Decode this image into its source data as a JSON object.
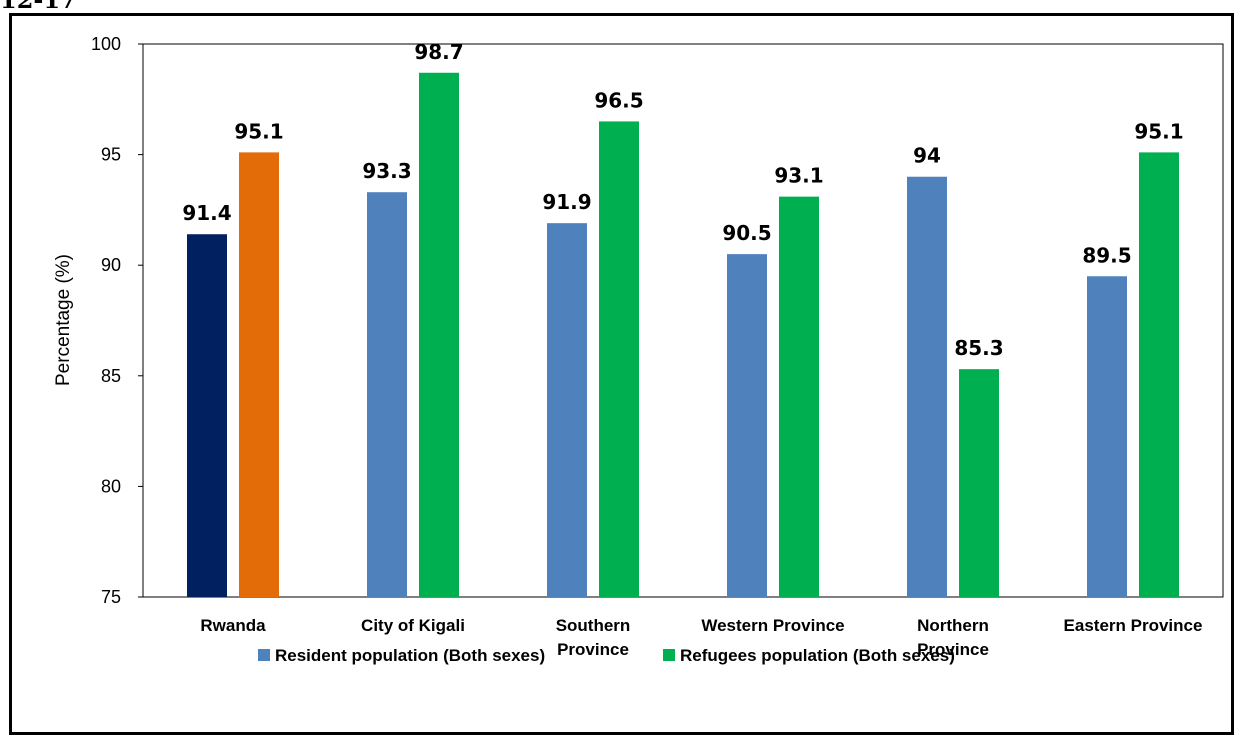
{
  "header": {
    "partial_text": "12-17"
  },
  "chart_data": {
    "type": "bar",
    "title": "",
    "xlabel": "",
    "ylabel": "Percentage (%)",
    "ylim": [
      75,
      100
    ],
    "yticks": [
      75,
      80,
      85,
      90,
      95,
      100
    ],
    "categories": [
      [
        "Rwanda"
      ],
      [
        "City of Kigali"
      ],
      [
        "Southern",
        "Province"
      ],
      [
        "Western Province"
      ],
      [
        "Northern",
        "Province"
      ],
      [
        "Eastern Province"
      ]
    ],
    "series": [
      {
        "name": "Resident population (Both sexes)",
        "values": [
          91.4,
          93.3,
          91.9,
          90.5,
          94,
          89.5
        ],
        "color": "#4F81BD"
      },
      {
        "name": "Refugees  population (Both sexes)",
        "values": [
          95.1,
          98.7,
          96.5,
          93.1,
          85.3,
          95.1
        ],
        "color": "#00B050"
      }
    ],
    "highlight": {
      "category_index": 0,
      "colors": [
        "#002060",
        "#E36C09"
      ]
    },
    "data_labels": true,
    "grid": false,
    "legend": "bottom"
  }
}
